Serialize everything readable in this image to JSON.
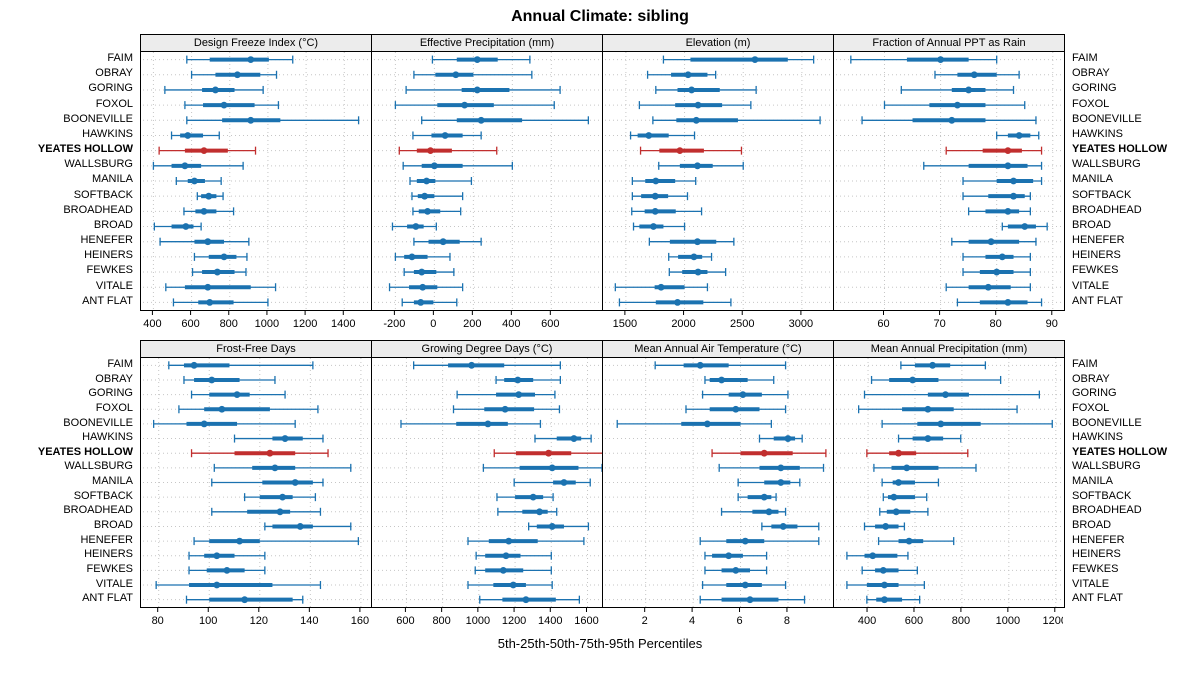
{
  "title": "Annual Climate: sibling",
  "xlabel": "5th-25th-50th-75th-95th Percentiles",
  "highlight_site": "YEATES HOLLOW",
  "sites": [
    "FAIM",
    "OBRAY",
    "GORING",
    "FOXOL",
    "BOONEVILLE",
    "HAWKINS",
    "YEATES HOLLOW",
    "WALLSBURG",
    "MANILA",
    "SOFTBACK",
    "BROADHEAD",
    "BROAD",
    "HENEFER",
    "HEINERS",
    "FEWKES",
    "VITALE",
    "ANT FLAT"
  ],
  "colors": {
    "series": "#1b72b0",
    "highlight": "#c12e2e",
    "grid": "#c6c6c6",
    "strip_bg": "#ececec",
    "border": "#000000"
  },
  "chart_data": {
    "type": "interval",
    "percentile_labels": [
      "5th",
      "25th",
      "50th",
      "75th",
      "95th"
    ],
    "legend_note": "each row: 5th-95th thin line with caps, 25th-75th thick line, 50th dot",
    "panels": [
      {
        "title": "Design Freeze Index (°C)",
        "ticks": [
          400,
          600,
          800,
          1000,
          1200,
          1400
        ],
        "xmin": 335,
        "xmax": 1540,
        "values": [
          [
            575,
            695,
            910,
            1005,
            1130
          ],
          [
            600,
            725,
            840,
            960,
            1045
          ],
          [
            460,
            655,
            725,
            825,
            975
          ],
          [
            565,
            660,
            770,
            930,
            1055
          ],
          [
            575,
            760,
            910,
            1065,
            1475
          ],
          [
            495,
            540,
            580,
            660,
            745
          ],
          [
            430,
            565,
            665,
            790,
            935
          ],
          [
            400,
            495,
            565,
            650,
            870
          ],
          [
            520,
            580,
            615,
            670,
            755
          ],
          [
            630,
            650,
            690,
            730,
            765
          ],
          [
            560,
            620,
            665,
            730,
            820
          ],
          [
            405,
            495,
            570,
            610,
            650
          ],
          [
            435,
            615,
            685,
            770,
            900
          ],
          [
            615,
            690,
            770,
            835,
            890
          ],
          [
            605,
            655,
            735,
            825,
            885
          ],
          [
            465,
            565,
            685,
            910,
            1040
          ],
          [
            505,
            635,
            695,
            820,
            1000
          ]
        ]
      },
      {
        "title": "Effective Precipitation (mm)",
        "ticks": [
          -200,
          0,
          200,
          400,
          600
        ],
        "xmin": -320,
        "xmax": 860,
        "values": [
          [
            -10,
            115,
            220,
            325,
            490
          ],
          [
            -105,
            5,
            110,
            200,
            500
          ],
          [
            -145,
            140,
            220,
            385,
            645
          ],
          [
            -200,
            15,
            155,
            305,
            615
          ],
          [
            -65,
            115,
            240,
            450,
            790
          ],
          [
            -110,
            -15,
            55,
            145,
            240
          ],
          [
            -180,
            -90,
            -20,
            90,
            320
          ],
          [
            -160,
            -65,
            0,
            145,
            400
          ],
          [
            -125,
            -90,
            -40,
            5,
            190
          ],
          [
            -115,
            -85,
            -50,
            0,
            145
          ],
          [
            -110,
            -80,
            -35,
            30,
            135
          ],
          [
            -215,
            -140,
            -95,
            -55,
            10
          ],
          [
            -105,
            -30,
            45,
            130,
            240
          ],
          [
            -200,
            -155,
            -115,
            -35,
            80
          ],
          [
            -155,
            -105,
            -65,
            10,
            100
          ],
          [
            -230,
            -130,
            -60,
            15,
            145
          ],
          [
            -165,
            -105,
            -70,
            -5,
            115
          ]
        ]
      },
      {
        "title": "Elevation (m)",
        "ticks": [
          1500,
          2000,
          2500,
          3000
        ],
        "xmin": 1305,
        "xmax": 3265,
        "values": [
          [
            1820,
            2050,
            2600,
            2880,
            3100
          ],
          [
            1685,
            1885,
            2030,
            2195,
            2265
          ],
          [
            1755,
            1940,
            2060,
            2300,
            2610
          ],
          [
            1615,
            1920,
            2115,
            2320,
            2565
          ],
          [
            1730,
            1930,
            2100,
            2455,
            3155
          ],
          [
            1540,
            1600,
            1695,
            1865,
            2085
          ],
          [
            1625,
            1785,
            1960,
            2165,
            2485
          ],
          [
            1780,
            1960,
            2110,
            2240,
            2500
          ],
          [
            1555,
            1665,
            1755,
            1920,
            2095
          ],
          [
            1555,
            1630,
            1750,
            1860,
            2025
          ],
          [
            1550,
            1660,
            1750,
            1925,
            2145
          ],
          [
            1565,
            1615,
            1735,
            1820,
            2000
          ],
          [
            1700,
            1875,
            2110,
            2270,
            2420
          ],
          [
            1865,
            1945,
            2080,
            2150,
            2230
          ],
          [
            1870,
            1980,
            2115,
            2195,
            2350
          ],
          [
            1410,
            1745,
            1800,
            2000,
            2195
          ],
          [
            1445,
            1755,
            1940,
            2160,
            2395
          ]
        ]
      },
      {
        "title": "Fraction of Annual PPT as Rain",
        "ticks": [
          60,
          70,
          80,
          90
        ],
        "xmin": 51,
        "xmax": 92,
        "values": [
          [
            54,
            64,
            70,
            75,
            80
          ],
          [
            69,
            73,
            76,
            80,
            84
          ],
          [
            63,
            72,
            75,
            78,
            83
          ],
          [
            60,
            68,
            73,
            78,
            85
          ],
          [
            56,
            65,
            72,
            78,
            87
          ],
          [
            80,
            82,
            84,
            86,
            87.5
          ],
          [
            71,
            77.5,
            82,
            84.5,
            88
          ],
          [
            67,
            75,
            82,
            85.5,
            88
          ],
          [
            74,
            80,
            83,
            86.5,
            88
          ],
          [
            74,
            78.5,
            83,
            85,
            86
          ],
          [
            75,
            78,
            82,
            84,
            86
          ],
          [
            81,
            82,
            85,
            87,
            89
          ],
          [
            72,
            75,
            79,
            84,
            87
          ],
          [
            74,
            78,
            81,
            83,
            86
          ],
          [
            74,
            77,
            80,
            83,
            86
          ],
          [
            71,
            75,
            78.5,
            82.5,
            86
          ],
          [
            73,
            77,
            82,
            85.5,
            88
          ]
        ]
      },
      {
        "title": "Frost-Free Days",
        "ticks": [
          80,
          100,
          120,
          140,
          160
        ],
        "xmin": 73,
        "xmax": 164,
        "values": [
          [
            84,
            90,
            94,
            108,
            141
          ],
          [
            90,
            94,
            101,
            112,
            126
          ],
          [
            93,
            100,
            111,
            116,
            130
          ],
          [
            88,
            98,
            105,
            124,
            143
          ],
          [
            78,
            91,
            98,
            111,
            134
          ],
          [
            110,
            125,
            130,
            137,
            145
          ],
          [
            93,
            110,
            124,
            134,
            147
          ],
          [
            102,
            117,
            126,
            134,
            156
          ],
          [
            101,
            121,
            134,
            141,
            145
          ],
          [
            114,
            120,
            129,
            133,
            142
          ],
          [
            101,
            115,
            128,
            132,
            144
          ],
          [
            122,
            125,
            136,
            141,
            156
          ],
          [
            94,
            100,
            112,
            120,
            159
          ],
          [
            92,
            98,
            103,
            110,
            122
          ],
          [
            92,
            99,
            107,
            114,
            122
          ],
          [
            79,
            92,
            103,
            125,
            144
          ],
          [
            91,
            100,
            114,
            133,
            137
          ]
        ]
      },
      {
        "title": "Growing Degree Days (°C)",
        "ticks": [
          600,
          800,
          1000,
          1200,
          1400,
          1600
        ],
        "xmin": 410,
        "xmax": 1680,
        "values": [
          [
            640,
            830,
            960,
            1140,
            1450
          ],
          [
            1095,
            1140,
            1215,
            1300,
            1450
          ],
          [
            880,
            1095,
            1220,
            1310,
            1420
          ],
          [
            860,
            1030,
            1145,
            1305,
            1445
          ],
          [
            570,
            875,
            1050,
            1160,
            1340
          ],
          [
            1310,
            1430,
            1525,
            1565,
            1620
          ],
          [
            1085,
            1205,
            1385,
            1510,
            1705
          ],
          [
            1025,
            1225,
            1405,
            1550,
            1680
          ],
          [
            1195,
            1410,
            1470,
            1535,
            1615
          ],
          [
            1100,
            1200,
            1300,
            1355,
            1410
          ],
          [
            1105,
            1240,
            1335,
            1380,
            1430
          ],
          [
            1275,
            1320,
            1405,
            1470,
            1605
          ],
          [
            940,
            1055,
            1165,
            1325,
            1580
          ],
          [
            985,
            1035,
            1150,
            1230,
            1400
          ],
          [
            980,
            1035,
            1135,
            1245,
            1400
          ],
          [
            940,
            1080,
            1190,
            1260,
            1405
          ],
          [
            1005,
            1130,
            1260,
            1425,
            1555
          ]
        ]
      },
      {
        "title": "Mean Annual Air Temperature (°C)",
        "ticks": [
          2,
          4,
          6,
          8
        ],
        "xmin": 0.2,
        "xmax": 9.9,
        "values": [
          [
            2.4,
            3.6,
            4.3,
            5.5,
            7.9
          ],
          [
            4.5,
            4.7,
            5.2,
            6.3,
            7.4
          ],
          [
            4.4,
            5.5,
            6.1,
            6.9,
            8.0
          ],
          [
            3.7,
            4.7,
            5.8,
            6.8,
            7.9
          ],
          [
            0.8,
            3.5,
            4.6,
            6.0,
            7.3
          ],
          [
            6.8,
            7.4,
            8.0,
            8.3,
            8.6
          ],
          [
            4.8,
            6.0,
            7.0,
            8.2,
            9.6
          ],
          [
            5.1,
            6.8,
            7.7,
            8.5,
            9.5
          ],
          [
            5.9,
            7.0,
            7.7,
            8.1,
            8.5
          ],
          [
            5.9,
            6.3,
            7.0,
            7.3,
            7.5
          ],
          [
            5.2,
            6.5,
            7.2,
            7.6,
            7.9
          ],
          [
            6.9,
            7.3,
            7.8,
            8.4,
            9.3
          ],
          [
            4.3,
            5.4,
            6.2,
            7.0,
            9.3
          ],
          [
            4.5,
            4.8,
            5.5,
            6.1,
            7.1
          ],
          [
            4.5,
            5.2,
            5.8,
            6.4,
            7.1
          ],
          [
            4.4,
            5.4,
            6.2,
            6.9,
            7.9
          ],
          [
            4.3,
            5.2,
            6.4,
            7.6,
            8.7
          ]
        ]
      },
      {
        "title": "Mean Annual Precipitation (mm)",
        "ticks": [
          400,
          600,
          800,
          1000,
          1200
        ],
        "xmin": 255,
        "xmax": 1235,
        "values": [
          [
            540,
            600,
            675,
            750,
            900
          ],
          [
            415,
            490,
            590,
            700,
            965
          ],
          [
            385,
            655,
            730,
            830,
            1130
          ],
          [
            360,
            545,
            655,
            765,
            1035
          ],
          [
            460,
            610,
            710,
            880,
            1185
          ],
          [
            530,
            590,
            655,
            720,
            795
          ],
          [
            395,
            490,
            530,
            605,
            825
          ],
          [
            425,
            500,
            565,
            700,
            860
          ],
          [
            460,
            505,
            530,
            600,
            700
          ],
          [
            465,
            485,
            510,
            600,
            650
          ],
          [
            450,
            480,
            520,
            580,
            655
          ],
          [
            385,
            430,
            475,
            530,
            555
          ],
          [
            445,
            530,
            575,
            635,
            765
          ],
          [
            310,
            385,
            420,
            525,
            570
          ],
          [
            375,
            430,
            465,
            530,
            610
          ],
          [
            310,
            395,
            470,
            530,
            640
          ],
          [
            395,
            435,
            470,
            545,
            620
          ]
        ]
      }
    ]
  }
}
